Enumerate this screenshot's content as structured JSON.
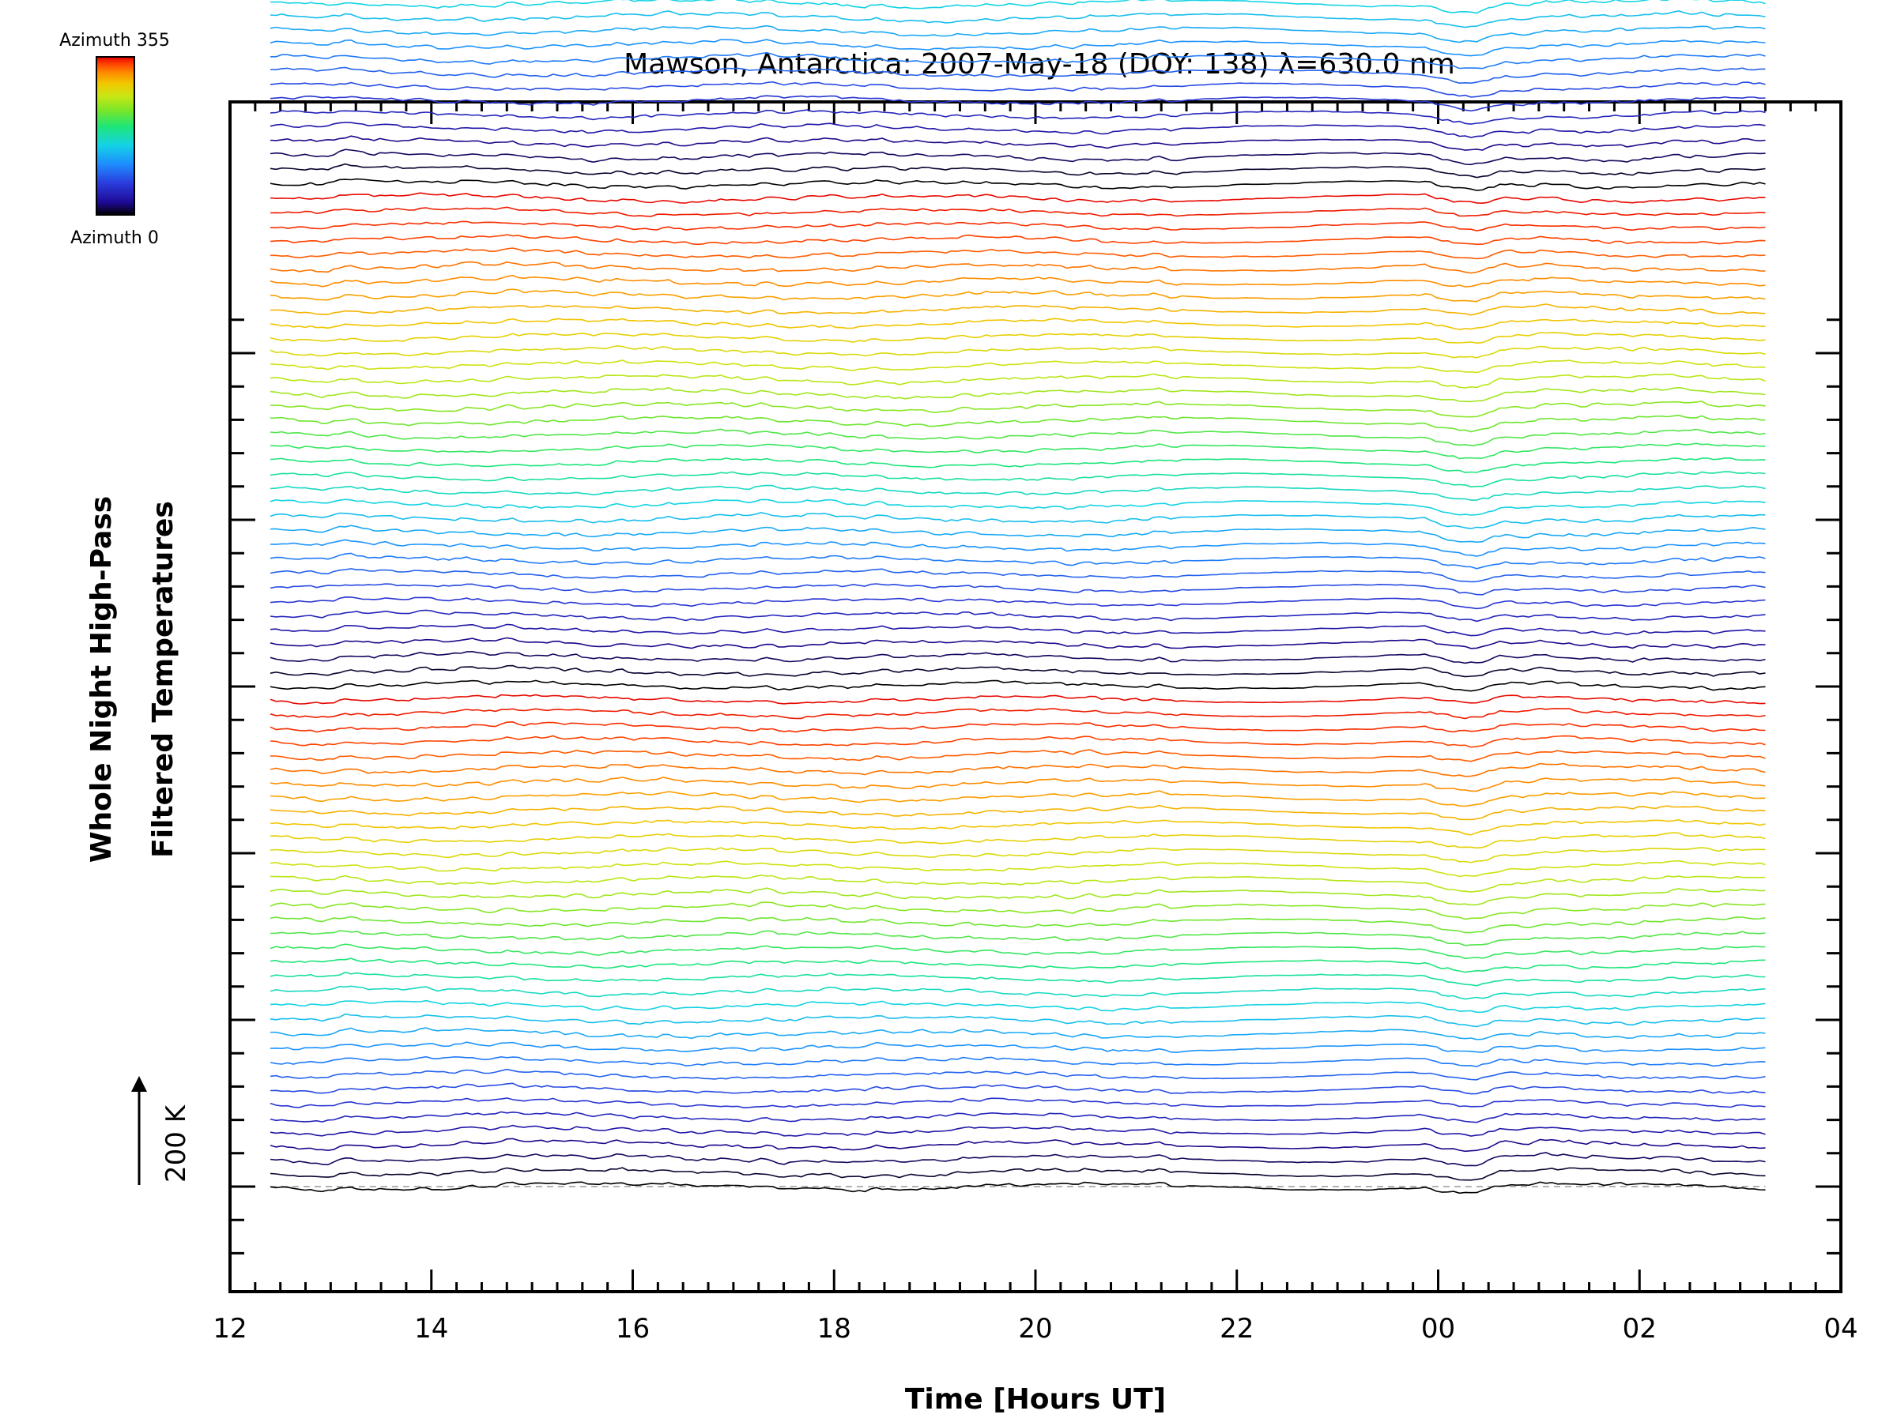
{
  "chart_data": {
    "type": "line",
    "title": "Mawson, Antarctica: 2007-May-18 (DOY: 138) λ=630.0 nm",
    "xlabel": "Time [Hours UT]",
    "ylabel_line1": "Whole Night High-Pass",
    "ylabel_line2": "Filtered Temperatures",
    "scale_label": "200 K",
    "scale_kelvin": 200,
    "colorbar": {
      "top_label": "Azimuth 355",
      "bottom_label": "Azimuth 0",
      "min": 0,
      "max": 355
    },
    "x_range_hours": [
      12,
      28
    ],
    "x_tick_hours": [
      12,
      14,
      16,
      18,
      20,
      22,
      24,
      26,
      28
    ],
    "x_tick_labels": [
      "12",
      "14",
      "16",
      "18",
      "20",
      "22",
      "00",
      "02",
      "04"
    ],
    "data_start_hour": 12.4,
    "data_end_hour": 27.25,
    "n_traces": 115,
    "trace_spacing_kelvin": 25,
    "azimuth_step_deg": 10,
    "baseline_dashed": true,
    "grid": false,
    "colors": {
      "axis": "#000000",
      "baseline": "#999999",
      "colormap": [
        "#000000",
        "#1e0a96",
        "#2a3cdc",
        "#1e8cff",
        "#14d2e6",
        "#1ee678",
        "#78e628",
        "#c8e614",
        "#f0c800",
        "#ff8c00",
        "#ff3c00",
        "#e10000"
      ]
    }
  }
}
